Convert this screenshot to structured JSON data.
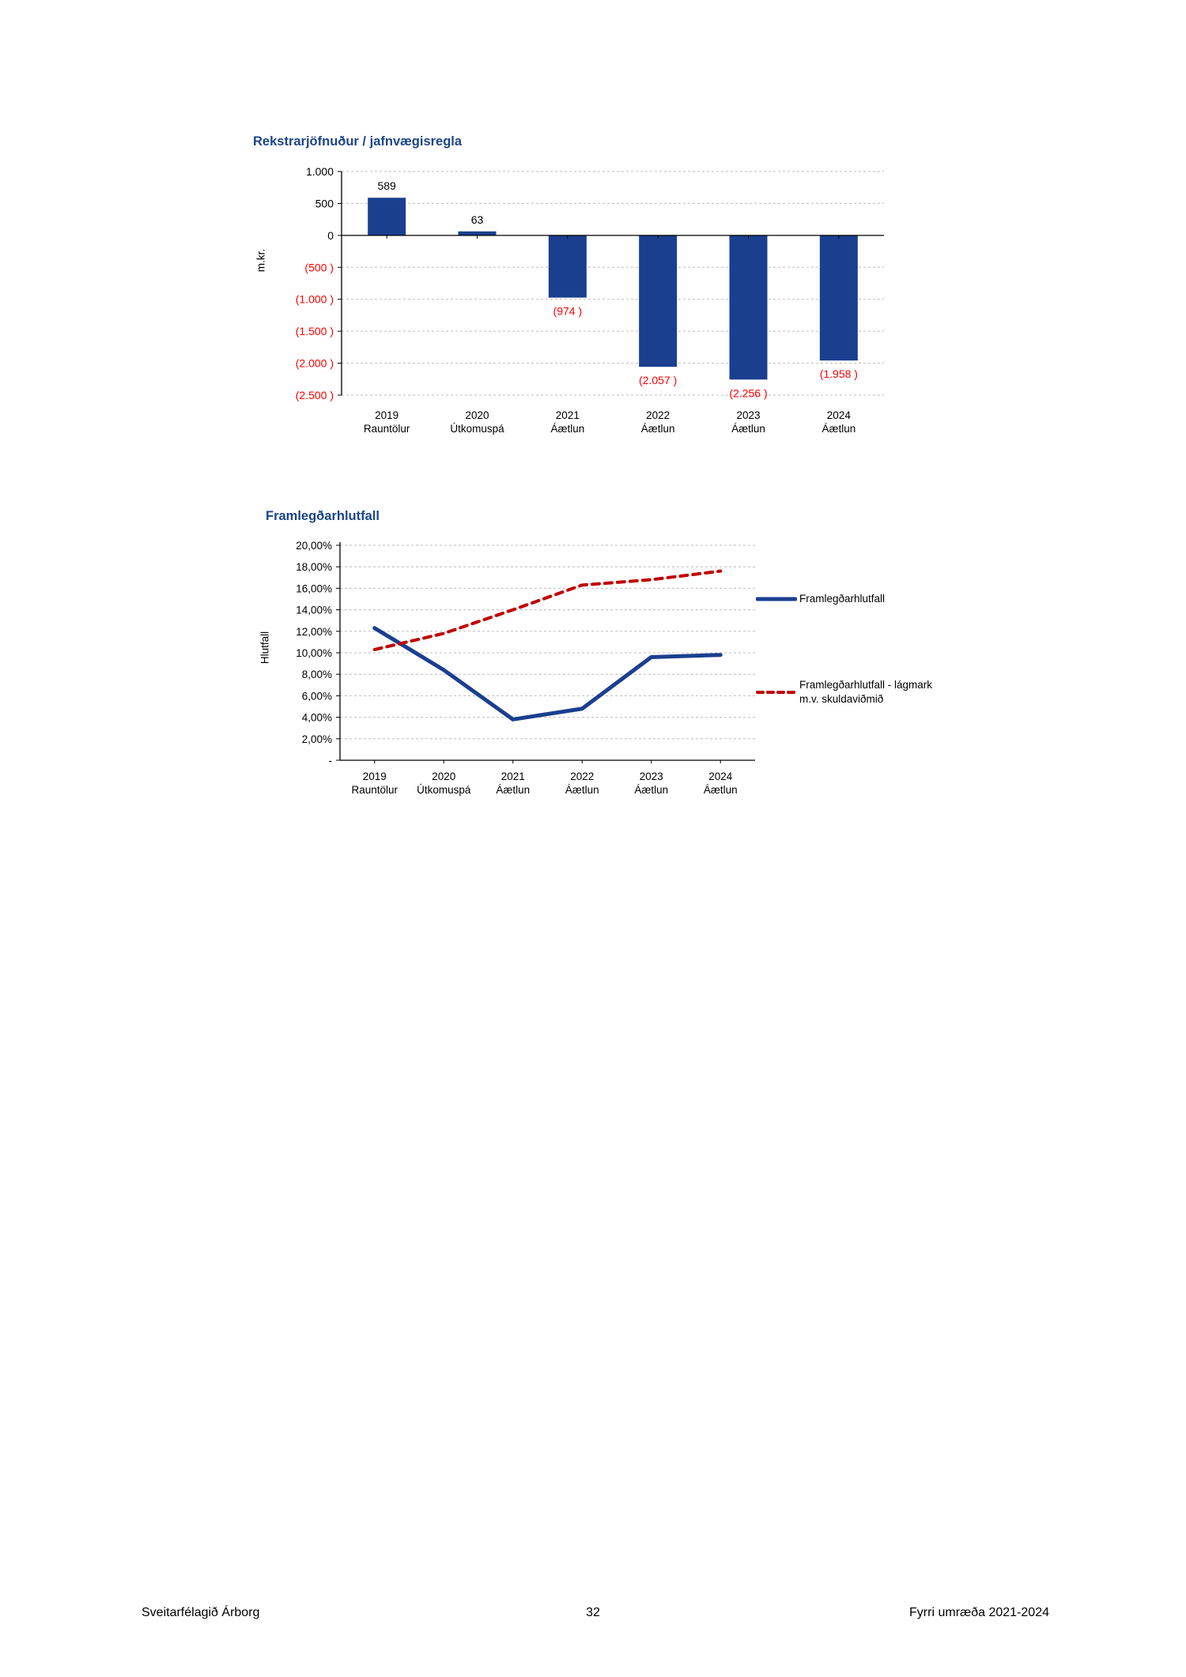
{
  "page": {
    "footer_left": "Sveitarfélagið Árborg",
    "footer_center": "32",
    "footer_right": "Fyrri umræða 2021-2024"
  },
  "colors": {
    "title_blue": "#1C4587",
    "bar_navy": "#1A3F8F",
    "negative_red": "#FF0000",
    "dashed_line_red": "#C00000",
    "grid_gray": "#BDBDBD",
    "axis_black": "#000000"
  },
  "chart_data": [
    {
      "type": "bar",
      "title": "Rekstrarjöfnuður / jafnvægisregla",
      "ylabel": "m.kr.",
      "categories": [
        {
          "year": "2019",
          "sub": "Rauntölur"
        },
        {
          "year": "2020",
          "sub": "Útkomuspá"
        },
        {
          "year": "2021",
          "sub": "Áætlun"
        },
        {
          "year": "2022",
          "sub": "Áætlun"
        },
        {
          "year": "2023",
          "sub": "Áætlun"
        },
        {
          "year": "2024",
          "sub": "Áætlun"
        }
      ],
      "values": [
        589,
        63,
        -974,
        -2057,
        -2256,
        -1958
      ],
      "value_labels": [
        "589",
        "63",
        "(974 )",
        "(2.057 )",
        "(2.256 )",
        "(1.958 )"
      ],
      "ylim": [
        -2500,
        1000
      ],
      "yticks": [
        {
          "value": 1000,
          "label": "1.000"
        },
        {
          "value": 500,
          "label": "500"
        },
        {
          "value": 0,
          "label": "0"
        },
        {
          "value": -500,
          "label": "(500 )"
        },
        {
          "value": -1000,
          "label": "(1.000 )"
        },
        {
          "value": -1500,
          "label": "(1.500 )"
        },
        {
          "value": -2000,
          "label": "(2.000 )"
        },
        {
          "value": -2500,
          "label": "(2.500 )"
        }
      ],
      "bar_color": "#1A3F8F",
      "grid": true
    },
    {
      "type": "line",
      "title": "Framlegðarhlutfall",
      "ylabel": "Hlutfall",
      "categories": [
        {
          "year": "2019",
          "sub": "Rauntölur"
        },
        {
          "year": "2020",
          "sub": "Útkomuspá"
        },
        {
          "year": "2021",
          "sub": "Áætlun"
        },
        {
          "year": "2022",
          "sub": "Áætlun"
        },
        {
          "year": "2023",
          "sub": "Áætlun"
        },
        {
          "year": "2024",
          "sub": "Áætlun"
        }
      ],
      "series": [
        {
          "name": "Framlegðarhlutfall",
          "color": "#1A3F8F",
          "dash": "solid",
          "values": [
            12.3,
            8.4,
            3.8,
            4.8,
            9.6,
            9.8
          ]
        },
        {
          "name": "Framlegðarhlutfall - lágmark m.v. skuldaviðmið",
          "legend_lines": [
            "Framlegðarhlutfall - lágmark",
            "m.v. skuldaviðmið"
          ],
          "color": "#C00000",
          "dash": "dashed",
          "values": [
            10.3,
            11.8,
            14.0,
            16.3,
            16.8,
            17.6
          ]
        }
      ],
      "ylim": [
        0,
        20
      ],
      "yticks": [
        {
          "value": 20,
          "label": "20,00%"
        },
        {
          "value": 18,
          "label": "18,00%"
        },
        {
          "value": 16,
          "label": "16,00%"
        },
        {
          "value": 14,
          "label": "14,00%"
        },
        {
          "value": 12,
          "label": "12,00%"
        },
        {
          "value": 10,
          "label": "10,00%"
        },
        {
          "value": 8,
          "label": "8,00%"
        },
        {
          "value": 6,
          "label": "6,00%"
        },
        {
          "value": 4,
          "label": "4,00%"
        },
        {
          "value": 2,
          "label": "2,00%"
        },
        {
          "value": 0,
          "label": "-"
        }
      ],
      "legend_position": "right",
      "grid": true
    }
  ]
}
